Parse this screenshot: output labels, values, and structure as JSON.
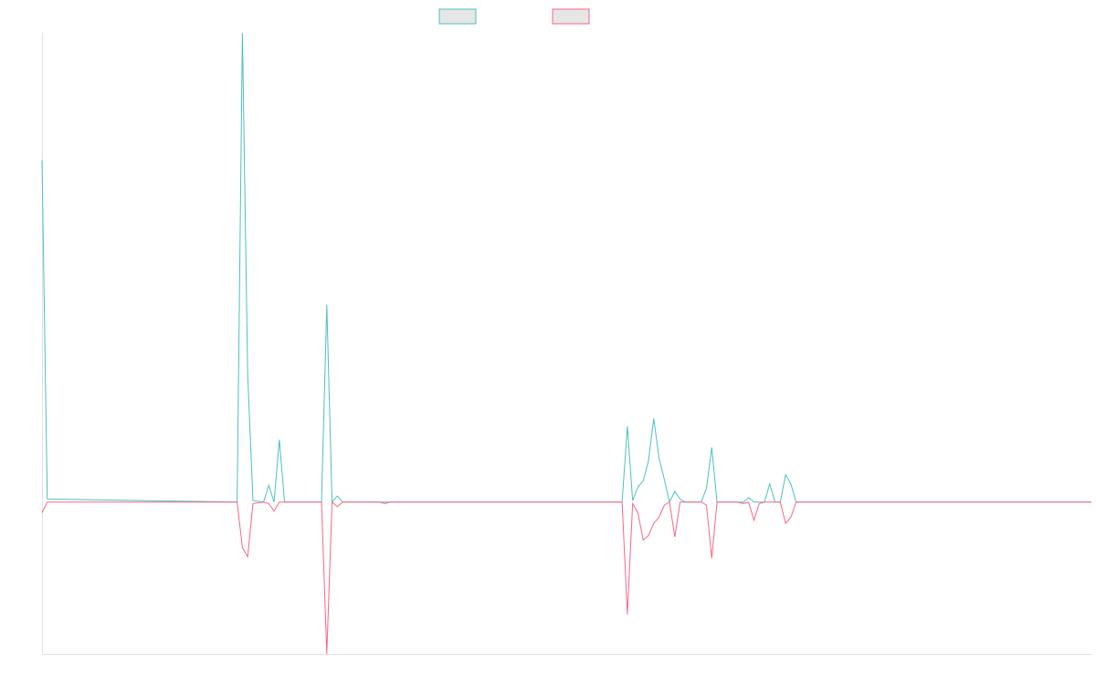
{
  "colors": {
    "series_a": "#4bc0c0",
    "series_b": "#ff6384",
    "legend_fill": "#e6e6e6",
    "axis": "#e0e0e0"
  },
  "chart_data": {
    "type": "line",
    "title": "",
    "xlabel": "",
    "ylabel": "",
    "grid": false,
    "legend_position": "top",
    "ylim": [
      -1,
      3.09
    ],
    "xlim": [
      0,
      199
    ],
    "series": [
      {
        "label": "",
        "color": "#4bc0c0",
        "values": {
          "0": 2.25,
          "1": 0.02,
          "37": 0.0,
          "38": 3.09,
          "39": 0.84,
          "40": 0.01,
          "42": 0.0,
          "43": 0.11,
          "44": 0.0,
          "45": 0.41,
          "46": 0.0,
          "53": 0.0,
          "54": 1.3,
          "55": 0.0,
          "56": 0.04,
          "57": 0.0,
          "110": 0.0,
          "111": 0.5,
          "112": 0.01,
          "113": 0.1,
          "114": 0.14,
          "115": 0.27,
          "116": 0.55,
          "117": 0.29,
          "118": 0.15,
          "119": 0.0,
          "120": 0.07,
          "121": 0.02,
          "122": 0.0,
          "125": 0.0,
          "126": 0.09,
          "127": 0.36,
          "128": 0.0,
          "133": 0.0,
          "134": 0.03,
          "135": 0.0,
          "137": 0.0,
          "138": 0.12,
          "139": 0.0,
          "140": 0.0,
          "141": 0.18,
          "142": 0.12,
          "143": 0.0,
          "199": 0.0
        }
      },
      {
        "label": "",
        "color": "#ff6384",
        "values": {
          "0": -0.07,
          "1": 0.0,
          "37": 0.0,
          "38": -0.3,
          "39": -0.36,
          "40": -0.01,
          "42": 0.0,
          "43": -0.01,
          "44": -0.06,
          "45": 0.0,
          "53": 0.0,
          "54": -1.0,
          "55": 0.0,
          "56": -0.03,
          "57": 0.0,
          "64": 0.0,
          "65": -0.01,
          "66": 0.0,
          "110": 0.0,
          "111": -0.74,
          "112": -0.01,
          "113": -0.07,
          "114": -0.25,
          "115": -0.22,
          "116": -0.14,
          "117": -0.1,
          "118": -0.02,
          "119": 0.0,
          "120": -0.23,
          "121": 0.0,
          "125": 0.0,
          "126": -0.02,
          "127": -0.37,
          "128": 0.0,
          "132": 0.0,
          "133": -0.01,
          "134": 0.0,
          "135": -0.12,
          "136": -0.01,
          "137": 0.0,
          "140": 0.0,
          "141": -0.14,
          "142": -0.1,
          "143": 0.0,
          "199": 0.0
        }
      }
    ]
  }
}
